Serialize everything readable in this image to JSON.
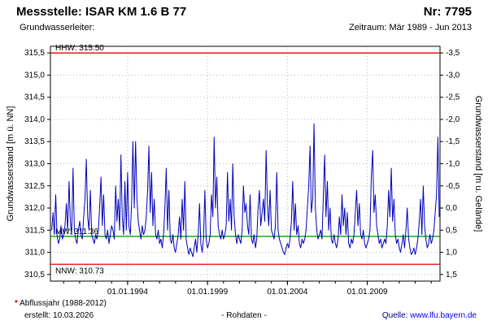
{
  "header": {
    "title": "Messstelle: ISAR KM 1.6 B 77",
    "number": "Nr: 7795",
    "aquifer_label": "Grundwasserleiter:",
    "period_label": "Zeitraum: Mär 1989 - Jun 2013"
  },
  "footer": {
    "note_star": "*",
    "note_text": " Abflussjahr (1988-2012)",
    "created": "erstellt:  10.03.2026",
    "center": "- Rohdaten -",
    "source_label": "Quelle: ",
    "source_link": "www.lfu.bayern.de"
  },
  "chart_data": {
    "type": "line",
    "title": "",
    "ylabel_left": "Grundwasserstand [m ü. NN]",
    "ylabel_right": "Grundwasserstand [m u. Gelände]",
    "x_range": [
      1989.17,
      2013.55
    ],
    "y_range": [
      310.35,
      315.65
    ],
    "ground_level_m_nn": 312.0,
    "grid": true,
    "colors": {
      "series": "#0000bb",
      "hhw_nnw": "#ee0000",
      "mw": "#00a000",
      "grid": "#b8b8b8",
      "frame": "#000000"
    },
    "y_ticks": [
      {
        "value": 315.5,
        "left": "315,5",
        "right": "-3,5"
      },
      {
        "value": 315.0,
        "left": "315,0",
        "right": "-3,0"
      },
      {
        "value": 314.5,
        "left": "314,5",
        "right": "-2,5"
      },
      {
        "value": 314.0,
        "left": "314,0",
        "right": "-2,0"
      },
      {
        "value": 313.5,
        "left": "313,5",
        "right": "-1,5"
      },
      {
        "value": 313.0,
        "left": "313,0",
        "right": "-1,0"
      },
      {
        "value": 312.5,
        "left": "312,5",
        "right": "-0,5"
      },
      {
        "value": 312.0,
        "left": "312,0",
        "right": "0,0"
      },
      {
        "value": 311.5,
        "left": "311,5",
        "right": "0,5"
      },
      {
        "value": 311.0,
        "left": "311,0",
        "right": "1,0"
      },
      {
        "value": 310.5,
        "left": "310,5",
        "right": "1,5"
      }
    ],
    "x_ticks": [
      {
        "x": 1994,
        "label": "01.01.1994"
      },
      {
        "x": 1999,
        "label": "01.01.1999"
      },
      {
        "x": 2004,
        "label": "01.01.2004"
      },
      {
        "x": 2009,
        "label": "01.01.2009"
      }
    ],
    "x_minor_step": 1,
    "reference_lines": [
      {
        "name": "HHW",
        "value": 315.5,
        "label": "HHW: 315.50",
        "color": "#ee0000",
        "label_side": "above"
      },
      {
        "name": "MW",
        "value": 311.36,
        "label": "MW: 311.36",
        "color": "#00a000",
        "label_side": "above"
      },
      {
        "name": "NNW",
        "value": 310.73,
        "label": "NNW: 310.73",
        "color": "#ee0000",
        "label_side": "below"
      }
    ],
    "series": [
      {
        "name": "Grundwasserstand Rohdaten",
        "color": "#0000bb",
        "start_year": 1989.25,
        "step_years": 0.0833333,
        "values": [
          311.5,
          311.9,
          311.4,
          312.3,
          311.4,
          311.2,
          311.3,
          311.6,
          311.3,
          311.4,
          311.6,
          312.1,
          311.5,
          312.6,
          311.7,
          311.4,
          312.9,
          311.5,
          311.3,
          311.2,
          311.5,
          311.7,
          311.4,
          311.3,
          311.8,
          312.2,
          313.1,
          311.8,
          311.5,
          312.4,
          311.4,
          311.3,
          311.2,
          311.4,
          311.3,
          311.5,
          312.0,
          312.7,
          311.6,
          312.3,
          311.4,
          311.3,
          311.5,
          311.2,
          311.4,
          311.6,
          311.5,
          311.3,
          312.5,
          311.7,
          312.2,
          311.5,
          313.2,
          311.8,
          311.4,
          312.6,
          311.5,
          312.8,
          311.6,
          311.4,
          312.1,
          313.5,
          312.0,
          313.5,
          312.2,
          311.7,
          311.5,
          311.3,
          311.6,
          311.4,
          311.5,
          311.8,
          312.4,
          313.4,
          311.9,
          312.8,
          311.6,
          312.2,
          311.4,
          311.3,
          311.5,
          311.2,
          311.3,
          311.1,
          311.4,
          312.0,
          312.9,
          311.5,
          312.4,
          311.3,
          311.2,
          311.4,
          311.1,
          311.0,
          311.2,
          311.4,
          311.8,
          311.3,
          312.2,
          311.5,
          312.6,
          311.3,
          311.1,
          310.95,
          311.1,
          311.0,
          310.9,
          311.1,
          311.3,
          311.0,
          311.4,
          312.1,
          311.2,
          311.0,
          311.3,
          312.4,
          311.3,
          311.1,
          311.2,
          311.4,
          312.3,
          311.8,
          313.6,
          312.0,
          312.7,
          311.6,
          311.4,
          311.3,
          311.5,
          311.3,
          311.4,
          311.6,
          312.8,
          311.7,
          312.2,
          311.5,
          313.0,
          311.8,
          311.4,
          311.2,
          311.4,
          311.3,
          311.2,
          311.5,
          312.5,
          311.9,
          312.1,
          311.6,
          311.4,
          312.3,
          311.3,
          311.2,
          311.4,
          311.1,
          311.3,
          312.0,
          312.4,
          311.6,
          311.9,
          312.2,
          311.7,
          313.3,
          312.1,
          311.6,
          312.4,
          311.5,
          311.4,
          311.3,
          311.6,
          312.8,
          311.5,
          311.3,
          311.2,
          311.1,
          311.0,
          310.95,
          311.1,
          311.2,
          311.1,
          311.3,
          311.7,
          312.6,
          311.5,
          312.1,
          311.4,
          311.6,
          311.2,
          311.1,
          311.3,
          311.2,
          311.3,
          311.5,
          312.0,
          312.5,
          313.4,
          311.9,
          312.2,
          313.9,
          312.0,
          311.5,
          311.3,
          311.4,
          311.5,
          311.3,
          312.3,
          313.2,
          311.8,
          312.6,
          311.5,
          312.0,
          311.3,
          311.2,
          311.4,
          311.2,
          311.1,
          311.3,
          311.8,
          311.4,
          312.3,
          311.6,
          312.0,
          311.4,
          311.9,
          311.2,
          311.1,
          311.3,
          311.2,
          311.4,
          311.9,
          312.4,
          311.6,
          312.1,
          311.4,
          311.3,
          311.5,
          311.2,
          311.1,
          311.2,
          311.3,
          311.5,
          312.7,
          313.3,
          311.9,
          312.3,
          311.6,
          311.4,
          311.2,
          311.3,
          311.1,
          311.2,
          311.3,
          311.2,
          311.6,
          312.4,
          311.8,
          312.9,
          311.7,
          312.2,
          311.4,
          311.2,
          311.3,
          311.1,
          311.0,
          311.2,
          311.4,
          311.1,
          311.5,
          312.0,
          311.3,
          311.1,
          310.95,
          311.0,
          311.1,
          310.95,
          311.1,
          311.3,
          311.7,
          312.2,
          311.4,
          312.5,
          311.6,
          311.3,
          311.1,
          311.2,
          311.4,
          311.2,
          311.3,
          311.5,
          311.9,
          312.3,
          313.6,
          311.8
        ]
      }
    ]
  }
}
